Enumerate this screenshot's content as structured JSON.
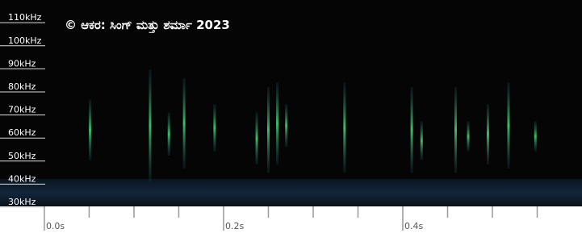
{
  "chart_data": {
    "type": "spectrogram",
    "title": "© ಆಕರ: ಸಿಂಗ್ ಮತ್ತು ಶರ್ಮಾ 2023",
    "ylim": [
      29.3,
      118.8
    ],
    "yticks": [
      {
        "value": 110,
        "label": "110kHz"
      },
      {
        "value": 100,
        "label": "100kHz"
      },
      {
        "value": 90,
        "label": "90kHz"
      },
      {
        "value": 80,
        "label": "80kHz"
      },
      {
        "value": 70,
        "label": "70kHz"
      },
      {
        "value": 60,
        "label": "60kHz"
      },
      {
        "value": 50,
        "label": "50kHz"
      },
      {
        "value": 40,
        "label": "40kHz"
      },
      {
        "value": 30,
        "label": "30kHz"
      }
    ],
    "xlim": [
      -0.0495,
      0.6
    ],
    "xticks": [
      {
        "value": 0,
        "label": "0.0s"
      },
      {
        "value": 0.2,
        "label": "0.2s"
      },
      {
        "value": 0.4,
        "label": "0.4s"
      }
    ],
    "xminor_ticks": [
      0.05,
      0.1,
      0.15,
      0.25,
      0.3,
      0.35,
      0.45,
      0.5,
      0.55
    ],
    "calls": {
      "x": [
        0.051,
        0.118,
        0.139,
        0.156,
        0.19,
        0.237,
        0.25,
        0.26,
        0.27,
        0.335,
        0.41,
        0.421,
        0.459,
        0.473,
        0.495,
        0.518,
        0.548
      ],
      "low": [
        49.4,
        40,
        51.3,
        45.7,
        53.1,
        47.5,
        43.8,
        47.5,
        55,
        43.8,
        43.8,
        49.4,
        43.8,
        53.1,
        47.5,
        45.7,
        53.1
      ],
      "high": [
        75.5,
        88.6,
        70,
        84.9,
        73.7,
        70,
        81.1,
        83,
        73.7,
        83,
        81.1,
        66.2,
        81.1,
        66.2,
        73.7,
        83,
        66.2
      ]
    }
  }
}
